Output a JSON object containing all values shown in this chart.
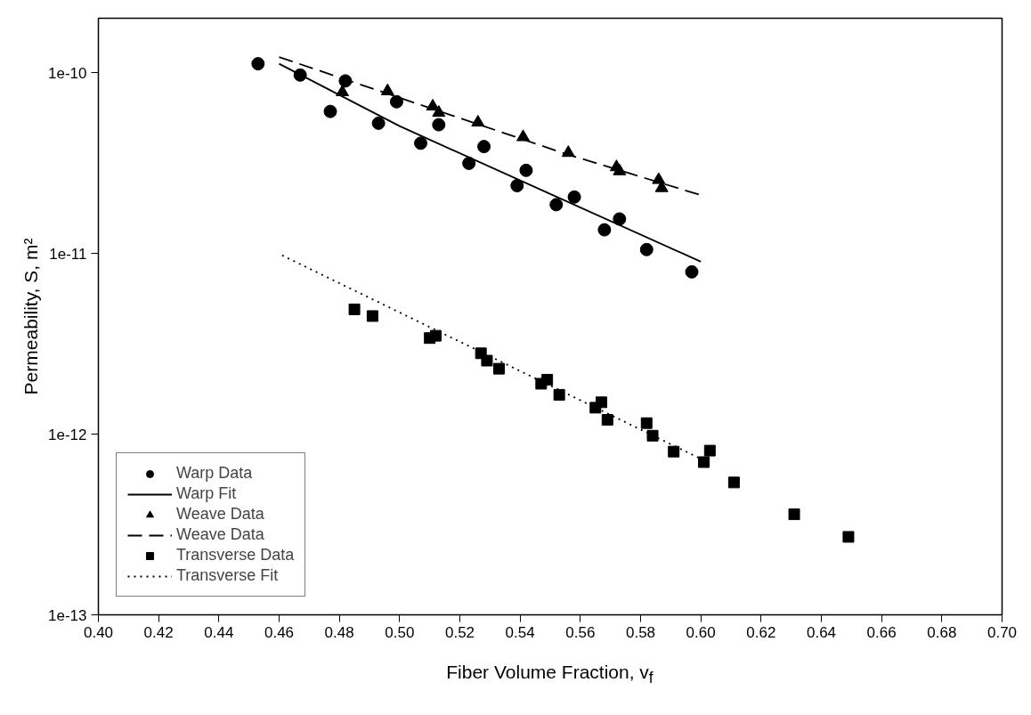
{
  "chart_data": {
    "type": "scatter",
    "xlabel": "Fiber Volume Fraction, v$_{f}$",
    "ylabel": "Permeability, S, m²",
    "log": "y",
    "grid": false,
    "legend": "bottom left",
    "xlim": [
      0.4,
      0.7
    ],
    "xticks": [
      {
        "value": 0.4,
        "label": "0.40"
      },
      {
        "value": 0.42,
        "label": "0.42"
      },
      {
        "value": 0.44,
        "label": "0.44"
      },
      {
        "value": 0.46,
        "label": "0.46"
      },
      {
        "value": 0.48,
        "label": "0.48"
      },
      {
        "value": 0.5,
        "label": "0.50"
      },
      {
        "value": 0.52,
        "label": "0.52"
      },
      {
        "value": 0.54,
        "label": "0.54"
      },
      {
        "value": 0.56,
        "label": "0.56"
      },
      {
        "value": 0.58,
        "label": "0.58"
      },
      {
        "value": 0.6,
        "label": "0.60"
      },
      {
        "value": 0.62,
        "label": "0.62"
      },
      {
        "value": 0.64,
        "label": "0.64"
      },
      {
        "value": 0.66,
        "label": "0.66"
      },
      {
        "value": 0.68,
        "label": "0.68"
      },
      {
        "value": 0.7,
        "label": "0.70"
      }
    ],
    "ylim": [
      1e-13,
      2e-10
    ],
    "yticks": [
      {
        "value": 1e-13,
        "label": "1e-13"
      },
      {
        "value": 1e-12,
        "label": "1e-12"
      },
      {
        "value": 1e-11,
        "label": "1e-11"
      },
      {
        "value": 1e-10,
        "label": "1e-10"
      }
    ],
    "series": [
      {
        "name": "Warp Data",
        "type": "scatter",
        "marker": "circle",
        "color": "#000000",
        "x": [
          0.453,
          0.467,
          0.477,
          0.482,
          0.493,
          0.499,
          0.507,
          0.513,
          0.523,
          0.528,
          0.539,
          0.542,
          0.552,
          0.558,
          0.568,
          0.573,
          0.582,
          0.597
        ],
        "values": [
          1.12e-10,
          9.7e-11,
          6.1e-11,
          9e-11,
          5.25e-11,
          6.9e-11,
          4.07e-11,
          5.15e-11,
          3.15e-11,
          3.9e-11,
          2.37e-11,
          2.88e-11,
          1.86e-11,
          2.05e-11,
          1.35e-11,
          1.55e-11,
          1.05e-11,
          7.9e-12
        ]
      },
      {
        "name": "Warp Fit",
        "type": "line",
        "line_style": "solid",
        "color": "#000000",
        "x": [
          0.46,
          0.5,
          0.552,
          0.6
        ],
        "values": [
          1.12e-10,
          5.06e-11,
          2.06e-11,
          9e-12
        ]
      },
      {
        "name": "Weave Data",
        "type": "scatter",
        "marker": "triangle",
        "color": "#000000",
        "x": [
          0.481,
          0.496,
          0.511,
          0.513,
          0.526,
          0.541,
          0.556,
          0.572,
          0.573,
          0.586,
          0.587
        ],
        "values": [
          7.8e-11,
          7.9e-11,
          6.5e-11,
          6e-11,
          5.3e-11,
          4.4e-11,
          3.6e-11,
          3e-11,
          2.85e-11,
          2.55e-11,
          2.3e-11
        ]
      },
      {
        "name": "Weave Data",
        "type": "line",
        "line_style": "dashed",
        "color": "#000000",
        "x": [
          0.46,
          0.555,
          0.6
        ],
        "values": [
          1.22e-10,
          3.56e-11,
          2.1e-11
        ]
      },
      {
        "name": "Transverse Data",
        "type": "scatter",
        "marker": "square",
        "color": "#000000",
        "x": [
          0.485,
          0.491,
          0.51,
          0.512,
          0.527,
          0.529,
          0.533,
          0.547,
          0.549,
          0.553,
          0.565,
          0.567,
          0.569,
          0.582,
          0.584,
          0.591,
          0.601,
          0.603,
          0.611,
          0.631,
          0.649
        ],
        "values": [
          4.9e-12,
          4.5e-12,
          3.4e-12,
          3.5e-12,
          2.8e-12,
          2.55e-12,
          2.3e-12,
          1.9e-12,
          2e-12,
          1.65e-12,
          1.4e-12,
          1.5e-12,
          1.2e-12,
          1.15e-12,
          9.8e-13,
          8e-13,
          7e-13,
          8.1e-13,
          5.4e-13,
          3.6e-13,
          2.7e-13
        ]
      },
      {
        "name": "Transverse Fit",
        "type": "line",
        "line_style": "dotted",
        "color": "#000000",
        "x": [
          0.461,
          0.6
        ],
        "values": [
          9.75e-12,
          7.3e-13
        ]
      }
    ]
  }
}
